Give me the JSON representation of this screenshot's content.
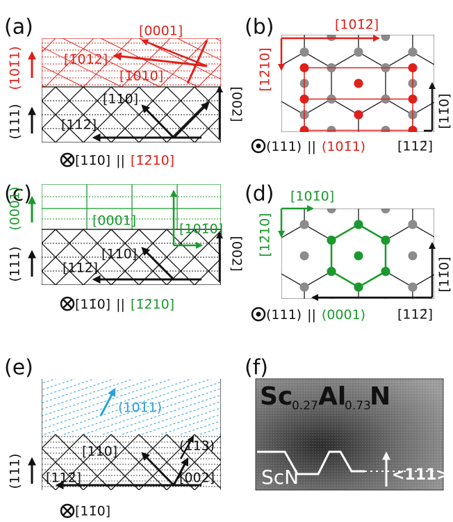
{
  "panels": [
    {
      "label": "(a)",
      "texts": [
        "(101̄1)",
        "(111)",
        "[0001]",
        "[1̄012]",
        "[1̄010]",
        "[110]",
        "[112̄]",
        "[002]",
        "[11̄0]",
        "||",
        "[1̄2̄10]"
      ]
    },
    {
      "label": "(b)",
      "texts": [
        "[101̄2̄]",
        "[12̄10]",
        "[11̄0]",
        "(111)",
        "||",
        "(101̄1)",
        "[112̄]"
      ]
    },
    {
      "label": "(c)",
      "texts": [
        "(0001)",
        "(111)",
        "[0001]",
        "[101̄0]",
        "[110]",
        "[112̄]",
        "[002]",
        "[11̄0]",
        "||",
        "[1̄2̄10]"
      ]
    },
    {
      "label": "(d)",
      "texts": [
        "[101̄0]",
        "[12̄10]",
        "[11̄0]",
        "(111)",
        "||",
        "(0001)",
        "[112̄]"
      ]
    },
    {
      "label": "(e)",
      "texts": [
        "(101̄1)",
        "[110]",
        "(113)",
        "[112̄]",
        "[002]",
        "(111)",
        "[11̄0]"
      ]
    },
    {
      "label": "(f)",
      "texts": [
        "Sc",
        "0.27",
        "Al",
        "0.73",
        "N",
        "ScN",
        "<111>"
      ]
    }
  ]
}
